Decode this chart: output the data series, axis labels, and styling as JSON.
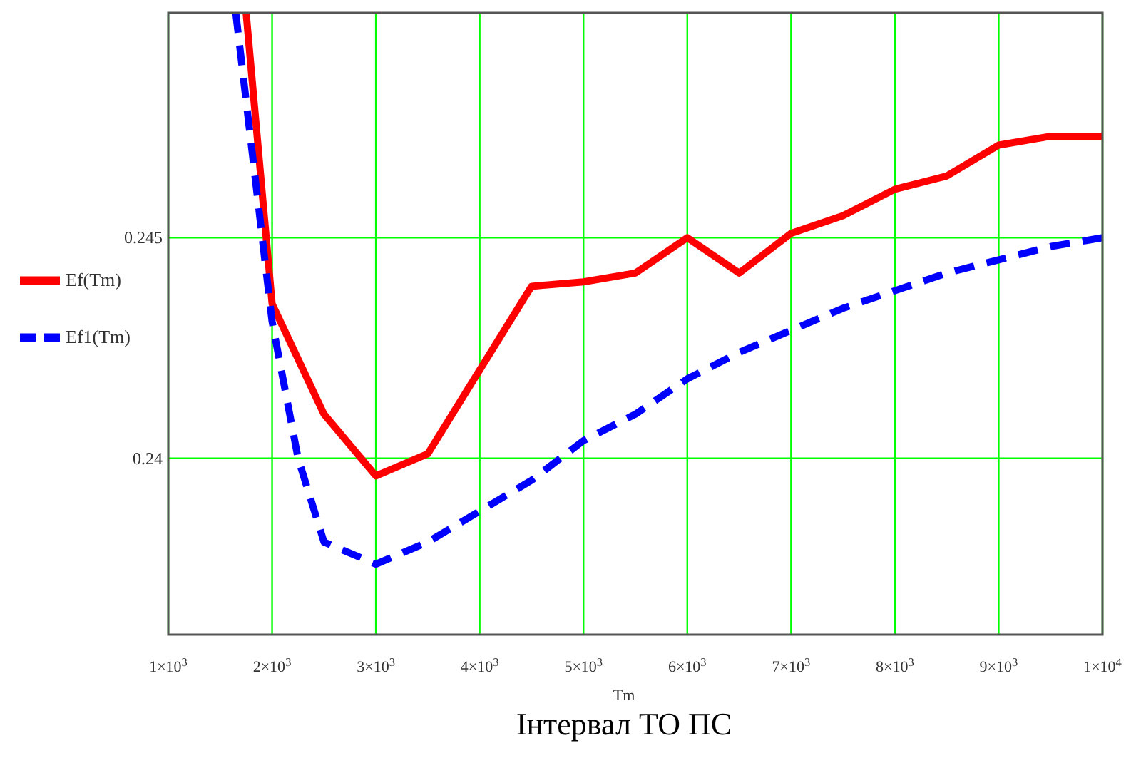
{
  "chart_data": {
    "type": "line",
    "xlabel": "Tm",
    "annotations": [
      "Інтервал ТО ПС"
    ],
    "xlim": [
      1000,
      10000
    ],
    "ylim": [
      0.236,
      0.2501
    ],
    "xticks": [
      {
        "value": 1000,
        "label": "1×10$^{3}$"
      },
      {
        "value": 2000,
        "label": "2×10$^{3}$"
      },
      {
        "value": 3000,
        "label": "3×10$^{3}$"
      },
      {
        "value": 4000,
        "label": "4×10$^{3}$"
      },
      {
        "value": 5000,
        "label": "5×10$^{3}$"
      },
      {
        "value": 6000,
        "label": "6×10$^{3}$"
      },
      {
        "value": 7000,
        "label": "7×10$^{3}$"
      },
      {
        "value": 8000,
        "label": "8×10$^{3}$"
      },
      {
        "value": 9000,
        "label": "9×10$^{3}$"
      },
      {
        "value": 10000,
        "label": "1×10$^{4}$"
      }
    ],
    "yticks": [
      0.24,
      0.245
    ],
    "grid": true,
    "legend": "left",
    "series": [
      {
        "name": "Ef(Tm)",
        "color": "#ff0000",
        "line_style": "solid",
        "x": [
          1750,
          2000,
          2500,
          3000,
          3500,
          4000,
          4500,
          5000,
          5500,
          6000,
          6500,
          7000,
          7500,
          8000,
          8500,
          9000,
          9500,
          10000
        ],
        "values": [
          0.2501,
          0.2435,
          0.241,
          0.2396,
          0.2401,
          0.242,
          0.2439,
          0.244,
          0.2442,
          0.245,
          0.2442,
          0.2451,
          0.2455,
          0.2461,
          0.2464,
          0.2471,
          0.2473,
          0.2473
        ]
      },
      {
        "name": "Ef1(Tm)",
        "color": "#0000ff",
        "line_style": "dashed",
        "x": [
          1650,
          2000,
          2250,
          2500,
          3000,
          3500,
          4000,
          4500,
          5000,
          5500,
          6000,
          6500,
          7000,
          7500,
          8000,
          8500,
          9000,
          9500,
          10000
        ],
        "values": [
          0.2501,
          0.2431,
          0.24,
          0.2381,
          0.2376,
          0.2381,
          0.2388,
          0.2395,
          0.2404,
          0.241,
          0.2418,
          0.2424,
          0.2429,
          0.2434,
          0.2438,
          0.2442,
          0.2445,
          0.2448,
          0.245
        ]
      }
    ]
  }
}
